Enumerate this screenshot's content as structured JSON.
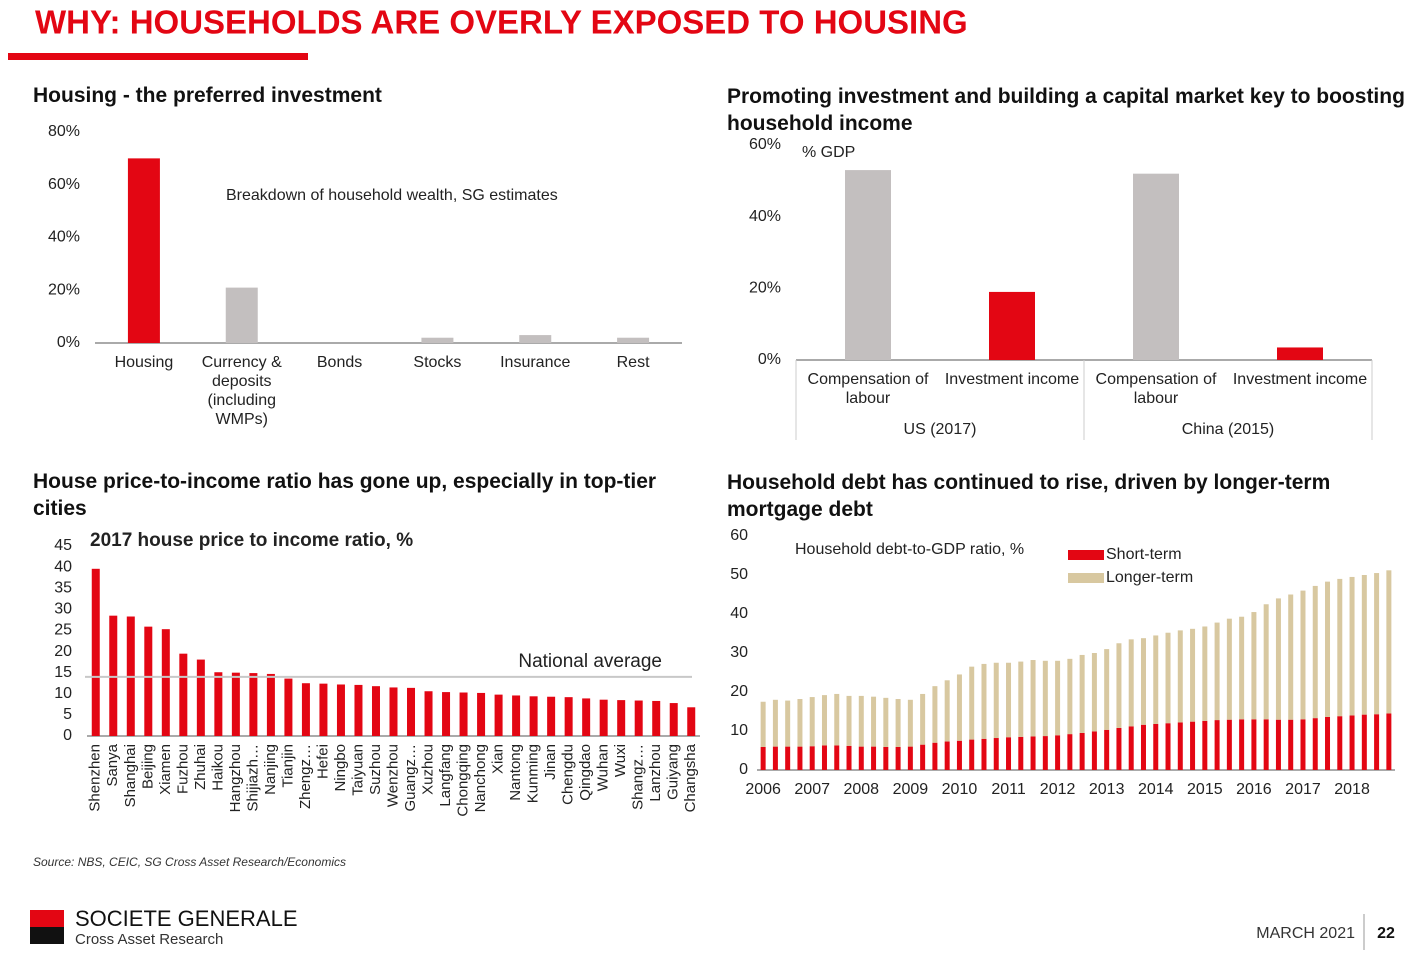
{
  "page": {
    "title": "WHY: HOUSEHOLDS ARE OVERLY EXPOSED TO HOUSING",
    "source": "Source: NBS, CEIC, SG Cross Asset Research/Economics",
    "logo": {
      "name": "SOCIETE GENERALE",
      "subtitle": "Cross Asset Research"
    },
    "date": "MARCH 2021",
    "page_number": 22
  },
  "chart_data": [
    {
      "type": "bar",
      "title": "Housing - the preferred investment",
      "annotation": "Breakdown of household wealth, SG estimates",
      "categories": [
        "Housing",
        "Currency & deposits (including WMPs)",
        "Bonds",
        "Stocks",
        "Insurance",
        "Rest"
      ],
      "values": [
        70,
        21,
        0,
        2,
        3,
        2
      ],
      "colors": [
        "#e30613",
        "#c3bfbf",
        "#c3bfbf",
        "#c3bfbf",
        "#c3bfbf",
        "#c3bfbf"
      ],
      "ylim": [
        0,
        80
      ],
      "yticks": [
        {
          "value": 0,
          "label": "0%"
        },
        {
          "value": 20,
          "label": "20%"
        },
        {
          "value": 40,
          "label": "40%"
        },
        {
          "value": 60,
          "label": "60%"
        },
        {
          "value": 80,
          "label": "80%"
        }
      ]
    },
    {
      "type": "bar",
      "title": "Promoting investment and building a capital market key to boosting household income",
      "y_label": "% GDP",
      "categories": [
        "Compensation of labour",
        "Investment income",
        "Compensation of labour",
        "Investment income"
      ],
      "groups": [
        "US (2017)",
        "China (2015)"
      ],
      "values": [
        53,
        19,
        52,
        3.5
      ],
      "colors": [
        "#c3bfbf",
        "#e30613",
        "#c3bfbf",
        "#e30613"
      ],
      "ylim": [
        0,
        60
      ],
      "yticks": [
        {
          "value": 0,
          "label": "0%"
        },
        {
          "value": 20,
          "label": "20%"
        },
        {
          "value": 40,
          "label": "40%"
        },
        {
          "value": 60,
          "label": "60%"
        }
      ]
    },
    {
      "type": "bar",
      "title": "House price-to-income ratio has gone up, especially in top-tier cities",
      "subtitle": "2017 house price to income ratio, %",
      "categories": [
        "Shenzhen",
        "Sanya",
        "Shanghai",
        "Beijing",
        "Xiamen",
        "Fuzhou",
        "Zhuhai",
        "Haikou",
        "Hangzhou",
        "Shijiazh…",
        "Nanjing",
        "Tianjin",
        "Zhengz…",
        "Hefei",
        "Ningbo",
        "Taiyuan",
        "Suzhou",
        "Wenzhou",
        "Guangz…",
        "Xuzhou",
        "Langfang",
        "Chongqing",
        "Nanchong",
        "Xian",
        "Nantong",
        "Kunming",
        "Jinan",
        "Chengdu",
        "Qingdao",
        "Wuhan",
        "Wuxi",
        "Shangz…",
        "Lanzhou",
        "Guiyang",
        "Changsha"
      ],
      "values": [
        39.6,
        28.5,
        28.3,
        25.9,
        25.3,
        19.5,
        18.1,
        15.1,
        15.0,
        14.9,
        14.7,
        13.6,
        12.5,
        12.4,
        12.2,
        12.1,
        11.8,
        11.5,
        11.4,
        10.6,
        10.4,
        10.3,
        10.2,
        9.8,
        9.6,
        9.4,
        9.3,
        9.2,
        8.9,
        8.6,
        8.5,
        8.4,
        8.3,
        7.8,
        6.8
      ],
      "color": "#e30613",
      "reference_line": {
        "label": "National average",
        "value": 14,
        "color": "#c8c8c8"
      },
      "ylim": [
        0,
        45
      ],
      "yticks": [
        0,
        5,
        10,
        15,
        20,
        25,
        30,
        35,
        40,
        45
      ]
    },
    {
      "type": "stacked_bar",
      "title": "Household debt has continued to rise, driven by longer-term mortgage debt",
      "annotation": "Household debt-to-GDP ratio, %",
      "categories": [
        "2006",
        null,
        null,
        null,
        "2007",
        null,
        null,
        null,
        "2008",
        null,
        null,
        null,
        "2009",
        null,
        null,
        null,
        "2010",
        null,
        null,
        null,
        "2011",
        null,
        null,
        null,
        "2012",
        null,
        null,
        null,
        "2013",
        null,
        null,
        null,
        "2014",
        null,
        null,
        null,
        "2015",
        null,
        null,
        null,
        "2016",
        null,
        null,
        null,
        "2017",
        null,
        null,
        null,
        "2018",
        null,
        null,
        null
      ],
      "series": [
        {
          "name": "Short-term",
          "color": "#e30613",
          "values": [
            5.9,
            6,
            6,
            6,
            6.1,
            6.3,
            6.3,
            6.2,
            6,
            6,
            5.9,
            5.9,
            6,
            6.5,
            7,
            7.3,
            7.5,
            7.8,
            8,
            8.2,
            8.4,
            8.5,
            8.6,
            8.7,
            8.9,
            9.2,
            9.5,
            9.9,
            10.3,
            10.8,
            11.2,
            11.6,
            11.8,
            12,
            12.2,
            12.4,
            12.6,
            12.8,
            12.9,
            13,
            13,
            13,
            12.9,
            12.9,
            13,
            13.3,
            13.6,
            13.8,
            14,
            14.2,
            14.3,
            14.5
          ]
        },
        {
          "name": "Longer-term",
          "color": "#d8c8a0",
          "values": [
            11.6,
            12,
            11.8,
            12.2,
            12.6,
            12.9,
            13.2,
            12.8,
            13,
            12.8,
            12.6,
            12.3,
            12,
            13,
            14.5,
            15.7,
            17,
            18.7,
            19.2,
            19.3,
            19.1,
            19.3,
            19.6,
            19.3,
            19.1,
            19.3,
            20,
            20.1,
            20.7,
            21.7,
            22.3,
            22.2,
            22.7,
            23.2,
            23.6,
            23.8,
            24.2,
            25,
            25.9,
            26.3,
            27.5,
            29.5,
            31.1,
            32.1,
            33,
            33.9,
            34.7,
            35.2,
            35.5,
            35.8,
            36.2,
            36.7
          ]
        }
      ],
      "legend": "top",
      "ylim": [
        0,
        60
      ],
      "yticks": [
        0,
        10,
        20,
        30,
        40,
        50,
        60
      ]
    }
  ]
}
